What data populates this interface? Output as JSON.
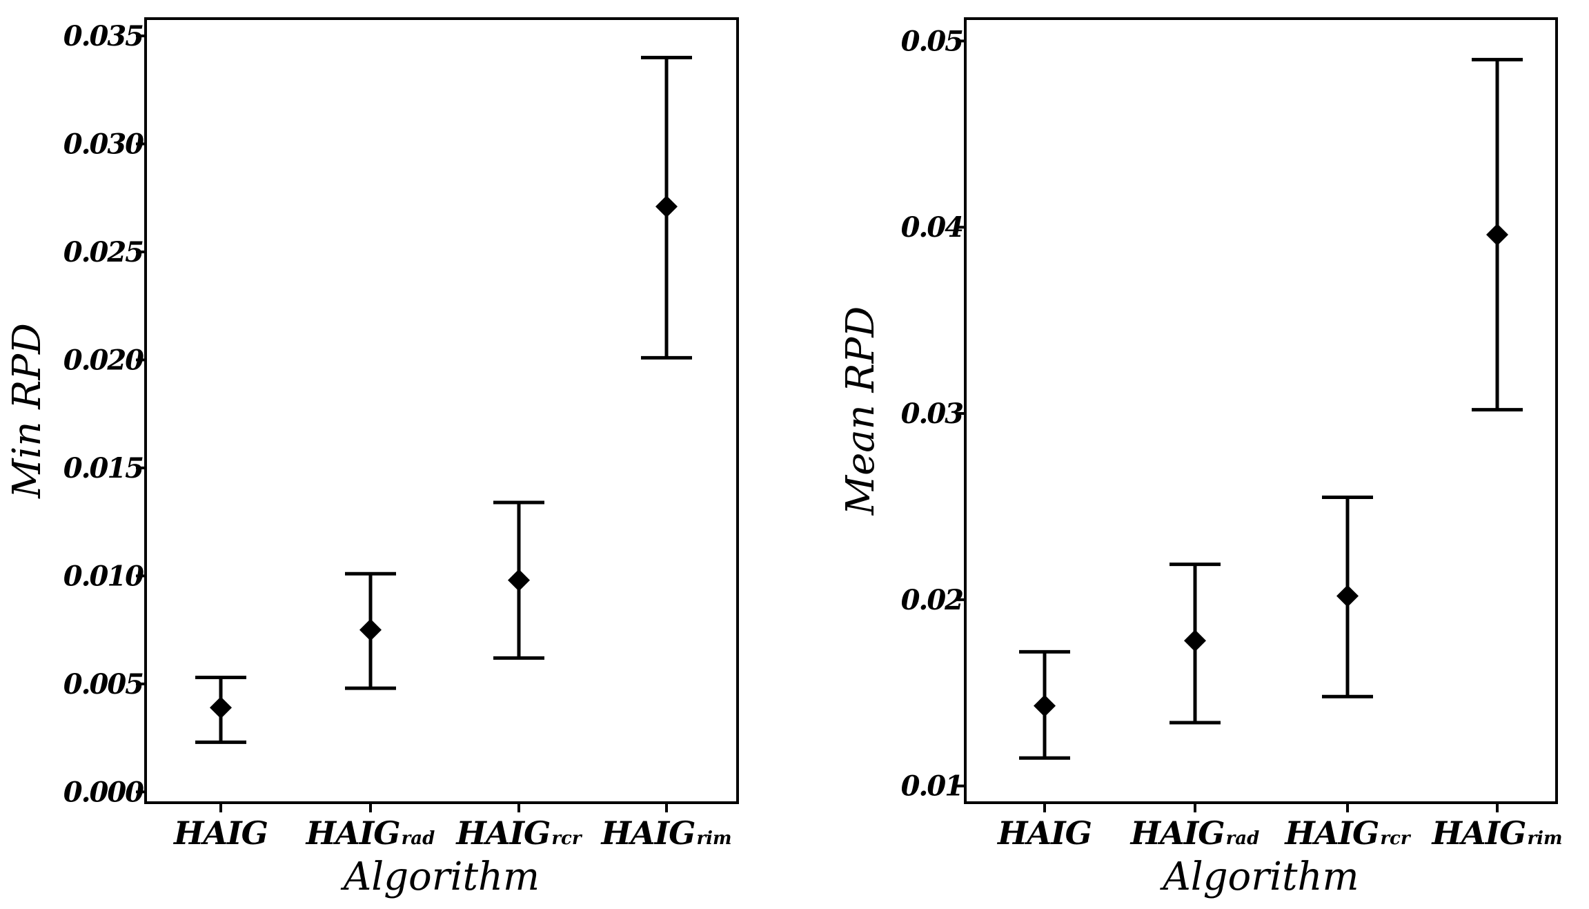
{
  "chart_data": [
    {
      "type": "scatter",
      "subtype": "interval-plot",
      "xlabel": "Algorithm",
      "ylabel": "Min RPD",
      "categories": [
        {
          "main": "HAIG",
          "sub": ""
        },
        {
          "main": "HAIG",
          "sub": "rad"
        },
        {
          "main": "HAIG",
          "sub": "rcr"
        },
        {
          "main": "HAIG",
          "sub": "rim"
        }
      ],
      "means": [
        0.0039,
        0.0075,
        0.0098,
        0.0271
      ],
      "lower": [
        0.0023,
        0.0048,
        0.0062,
        0.0201
      ],
      "upper": [
        0.0053,
        0.0101,
        0.0134,
        0.034
      ],
      "yticks": [
        0.0,
        0.005,
        0.01,
        0.015,
        0.02,
        0.025,
        0.03,
        0.035
      ],
      "ytick_labels": [
        "0.000",
        "0.005",
        "0.010",
        "0.015",
        "0.020",
        "0.025",
        "0.030",
        "0.035"
      ],
      "ylim": [
        -0.0005,
        0.0358
      ],
      "grid": false,
      "legend": "none"
    },
    {
      "type": "scatter",
      "subtype": "interval-plot",
      "xlabel": "Algorithm",
      "ylabel": "Mean RPD",
      "categories": [
        {
          "main": "HAIG",
          "sub": ""
        },
        {
          "main": "HAIG",
          "sub": "rad"
        },
        {
          "main": "HAIG",
          "sub": "rcr"
        },
        {
          "main": "HAIG",
          "sub": "rim"
        }
      ],
      "means": [
        0.0143,
        0.0178,
        0.0202,
        0.0396
      ],
      "lower": [
        0.0115,
        0.0134,
        0.0148,
        0.0302
      ],
      "upper": [
        0.0172,
        0.0219,
        0.0255,
        0.049
      ],
      "yticks": [
        0.01,
        0.02,
        0.03,
        0.04,
        0.05
      ],
      "ytick_labels": [
        "0.01",
        "0.02",
        "0.03",
        "0.04",
        "0.05"
      ],
      "ylim": [
        0.0091,
        0.0512
      ],
      "grid": false,
      "legend": "none"
    }
  ]
}
